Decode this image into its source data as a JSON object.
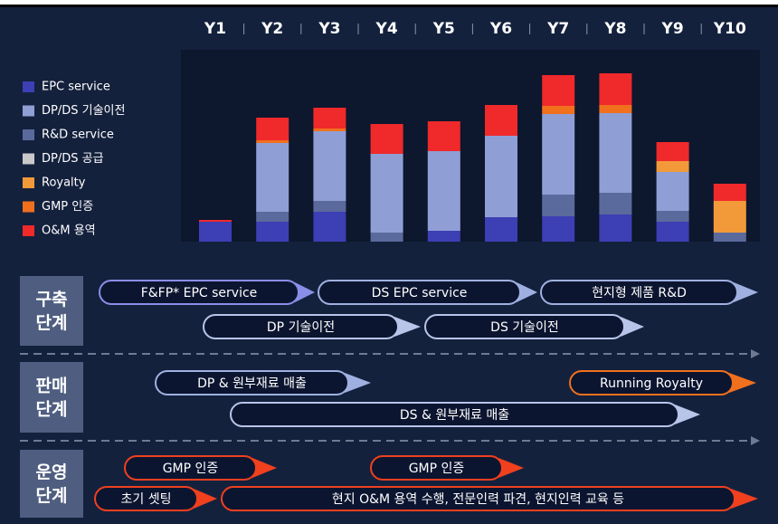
{
  "chart_data": {
    "type": "bar",
    "categories": [
      "Y1",
      "Y2",
      "Y3",
      "Y4",
      "Y5",
      "Y6",
      "Y7",
      "Y8",
      "Y9",
      "Y10"
    ],
    "series": [
      {
        "name": "EPC service",
        "color": "#3d3fb4",
        "values": [
          22,
          22,
          33,
          0,
          12,
          27,
          28,
          30,
          22,
          0
        ]
      },
      {
        "name": "DP/DS 기술이전",
        "color": "#8f9fd6",
        "values": [
          0,
          76,
          77,
          87,
          88,
          90,
          89,
          88,
          43,
          0
        ]
      },
      {
        "name": "R&D service",
        "color": "#5b6a9c",
        "values": [
          0,
          11,
          12,
          10,
          0,
          0,
          24,
          24,
          12,
          10
        ]
      },
      {
        "name": "DP/DS 공급",
        "color": "#c9c9c9",
        "values": [
          0,
          0,
          0,
          0,
          0,
          0,
          0,
          0,
          0,
          0
        ]
      },
      {
        "name": "Royalty",
        "color": "#f29a3a",
        "values": [
          0,
          0,
          0,
          0,
          0,
          0,
          0,
          0,
          12,
          35
        ]
      },
      {
        "name": "GMP 인증",
        "color": "#f0701e",
        "values": [
          0,
          3,
          3,
          0,
          0,
          0,
          9,
          9,
          0,
          0
        ]
      },
      {
        "name": "O&M 용역",
        "color": "#f0292b",
        "values": [
          2,
          25,
          23,
          33,
          33,
          34,
          34,
          35,
          21,
          19
        ]
      }
    ]
  },
  "stages": [
    {
      "label": [
        "구축",
        "단계"
      ],
      "items": [
        {
          "label": "F&FP* EPC service",
          "color": "#8a8ee8"
        },
        {
          "label": "DS EPC service",
          "color": "#9fb0e0"
        },
        {
          "label": "현지형 제품 R&D",
          "color": "#9fb0e0"
        },
        {
          "label": "DP 기술이전",
          "color": "#b8c4e8"
        },
        {
          "label": "DS 기술이전",
          "color": "#b8c4e8"
        }
      ]
    },
    {
      "label": [
        "판매",
        "단계"
      ],
      "items": [
        {
          "label": "DP & 원부재료 매출",
          "color": "#9fb0e0"
        },
        {
          "label": "Running Royalty",
          "color": "#f0701e"
        },
        {
          "label": "DS & 원부재료 매출",
          "color": "#b8c4e8"
        }
      ]
    },
    {
      "label": [
        "운영",
        "단계"
      ],
      "items": [
        {
          "label": "GMP 인증",
          "color": "#f0401e"
        },
        {
          "label": "GMP 인증",
          "color": "#f0401e"
        },
        {
          "label": "초기 셋팅",
          "color": "#f0401e"
        },
        {
          "label": "현지 O&M 용역 수행, 전문인력 파견, 현지인력 교육 등",
          "color": "#f0401e"
        }
      ]
    }
  ]
}
